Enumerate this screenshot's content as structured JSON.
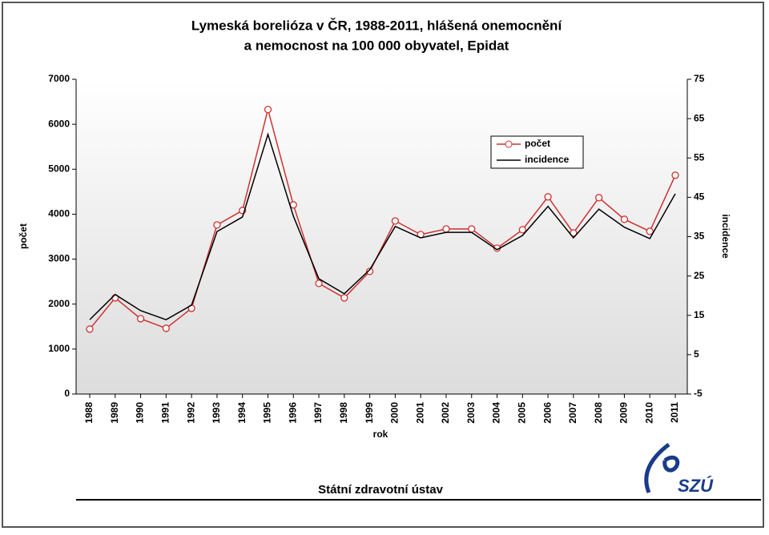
{
  "chart_data": {
    "type": "line",
    "title": "Lymeská borelióza v ČR, 1988-2011, hlášená onemocnění",
    "subtitle": "a nemocnost na 100 000 obyvatel, Epidat",
    "x_label": "rok",
    "y_label": "počet",
    "y2_label": "incidence",
    "categories": [
      "1988",
      "1989",
      "1990",
      "1991",
      "1992",
      "1993",
      "1994",
      "1995",
      "1996",
      "1997",
      "1998",
      "1999",
      "2000",
      "2001",
      "2002",
      "2003",
      "2004",
      "2005",
      "2006",
      "2007",
      "2008",
      "2009",
      "2010",
      "2011"
    ],
    "series": [
      {
        "name": "počet",
        "color": "#d03030",
        "marker": true,
        "values": [
          1444,
          2139,
          1676,
          1462,
          1907,
          3761,
          4082,
          6328,
          4207,
          2460,
          2139,
          2727,
          3850,
          3547,
          3672,
          3672,
          3244,
          3654,
          4385,
          3583,
          4367,
          3886,
          3619,
          4866
        ]
      },
      {
        "name": "incidence",
        "color": "#000000",
        "marker": false,
        "axis": "y2",
        "values": [
          13.9,
          20.3,
          16.2,
          13.9,
          17.6,
          36.3,
          40.0,
          61.0,
          40.2,
          24.3,
          20.5,
          26.6,
          37.6,
          34.7,
          36.1,
          36.1,
          31.7,
          35.3,
          42.7,
          34.7,
          42.0,
          37.4,
          34.5,
          45.9
        ]
      }
    ],
    "ylim": [
      0,
      7000
    ],
    "yticks": [
      0,
      1000,
      2000,
      3000,
      4000,
      5000,
      6000,
      7000
    ],
    "y2lim": [
      -5,
      75
    ],
    "y2ticks": [
      -5,
      5,
      15,
      25,
      35,
      45,
      55,
      65,
      75
    ],
    "grid": false,
    "legend": "upper right"
  },
  "footer": "Státní zdravotní ústav",
  "logo": "SZÚ"
}
